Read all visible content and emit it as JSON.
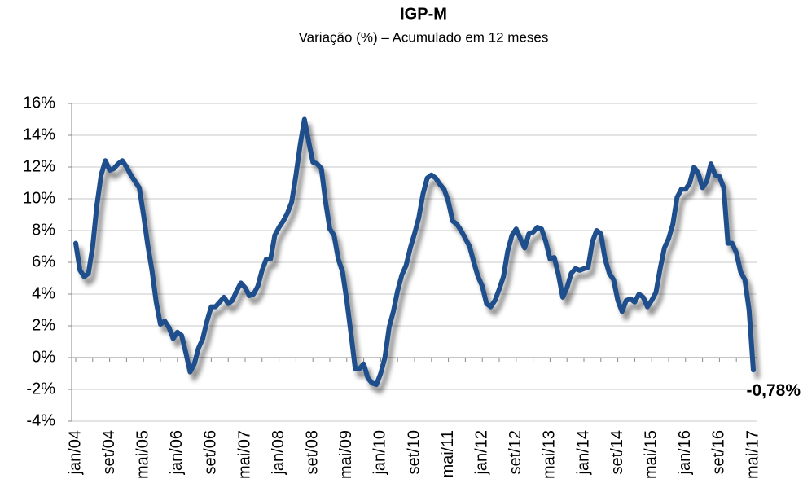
{
  "chart_data": {
    "type": "line",
    "title": "IGP-M",
    "subtitle": "Variação (%) – Acumulado em 12 meses",
    "categories": [
      "jan/04",
      null,
      null,
      null,
      null,
      null,
      null,
      null,
      "set/04",
      null,
      null,
      null,
      null,
      null,
      null,
      null,
      "mai/05",
      null,
      null,
      null,
      null,
      null,
      null,
      null,
      "jan/06",
      null,
      null,
      null,
      null,
      null,
      null,
      null,
      "set/06",
      null,
      null,
      null,
      null,
      null,
      null,
      null,
      "mai/07",
      null,
      null,
      null,
      null,
      null,
      null,
      null,
      "jan/08",
      null,
      null,
      null,
      null,
      null,
      null,
      null,
      "set/08",
      null,
      null,
      null,
      null,
      null,
      null,
      null,
      "mai/09",
      null,
      null,
      null,
      null,
      null,
      null,
      null,
      "jan/10",
      null,
      null,
      null,
      null,
      null,
      null,
      null,
      "set/10",
      null,
      null,
      null,
      null,
      null,
      null,
      null,
      "mai/11",
      null,
      null,
      null,
      null,
      null,
      null,
      null,
      "jan/12",
      null,
      null,
      null,
      null,
      null,
      null,
      null,
      "set/12",
      null,
      null,
      null,
      null,
      null,
      null,
      null,
      "mai/13",
      null,
      null,
      null,
      null,
      null,
      null,
      null,
      "jan/14",
      null,
      null,
      null,
      null,
      null,
      null,
      null,
      "set/14",
      null,
      null,
      null,
      null,
      null,
      null,
      null,
      "mai/15",
      null,
      null,
      null,
      null,
      null,
      null,
      null,
      "jan/16",
      null,
      null,
      null,
      null,
      null,
      null,
      null,
      "set/16",
      null,
      null,
      null,
      null,
      null,
      null,
      null,
      "mai/17"
    ],
    "series": [
      {
        "color": "#1f4e8c",
        "values": [
          7.2,
          5.5,
          5.1,
          5.3,
          7.0,
          9.6,
          11.5,
          12.4,
          11.8,
          11.9,
          12.2,
          12.4,
          12.0,
          11.5,
          11.1,
          10.7,
          9.0,
          7.1,
          5.5,
          3.5,
          2.1,
          2.3,
          1.9,
          1.2,
          1.6,
          1.4,
          0.3,
          -0.9,
          -0.4,
          0.6,
          1.2,
          2.3,
          3.2,
          3.2,
          3.5,
          3.8,
          3.4,
          3.6,
          4.2,
          4.7,
          4.4,
          3.9,
          4.0,
          4.5,
          5.5,
          6.2,
          6.2,
          7.7,
          8.2,
          8.6,
          9.1,
          9.8,
          11.5,
          13.4,
          15.0,
          13.6,
          12.3,
          12.2,
          11.9,
          9.8,
          8.1,
          7.7,
          6.2,
          5.4,
          3.6,
          1.5,
          -0.7,
          -0.7,
          -0.4,
          -1.3,
          -1.6,
          -1.7,
          -1.0,
          0.0,
          1.9,
          2.9,
          4.2,
          5.2,
          5.8,
          6.9,
          7.8,
          8.8,
          10.3,
          11.3,
          11.5,
          11.3,
          10.9,
          10.6,
          9.8,
          8.6,
          8.4,
          8.0,
          7.5,
          7.0,
          6.0,
          5.1,
          4.5,
          3.4,
          3.2,
          3.6,
          4.3,
          5.1,
          6.7,
          7.7,
          8.1,
          7.5,
          6.9,
          7.8,
          7.9,
          8.2,
          8.1,
          7.3,
          6.2,
          6.3,
          5.2,
          3.8,
          4.4,
          5.3,
          5.6,
          5.5,
          5.6,
          5.7,
          7.3,
          8.0,
          7.8,
          6.2,
          5.3,
          4.9,
          3.6,
          2.9,
          3.6,
          3.7,
          3.5,
          4.0,
          3.8,
          3.2,
          3.6,
          4.1,
          5.6,
          6.9,
          7.5,
          8.4,
          10.1,
          10.6,
          10.6,
          11.0,
          12.0,
          11.6,
          10.7,
          11.1,
          12.2,
          11.5,
          11.4,
          10.7,
          7.2,
          7.2,
          6.6,
          5.4,
          4.9,
          3.0,
          -0.78
        ],
        "value_labels": [
          null,
          null,
          null,
          null,
          null,
          null,
          null,
          null,
          null,
          null,
          null,
          null,
          null,
          null,
          null,
          null,
          null,
          null,
          null,
          null,
          null,
          null,
          null,
          null,
          null,
          null,
          null,
          null,
          null,
          null,
          null,
          null,
          null,
          null,
          null,
          null,
          null,
          null,
          null,
          null,
          null,
          null,
          null,
          null,
          null,
          null,
          null,
          null,
          null,
          null,
          null,
          null,
          null,
          null,
          null,
          null,
          null,
          null,
          null,
          null,
          null,
          null,
          null,
          null,
          null,
          null,
          null,
          null,
          null,
          null,
          null,
          null,
          null,
          null,
          null,
          null,
          null,
          null,
          null,
          null,
          null,
          null,
          null,
          null,
          null,
          null,
          null,
          null,
          null,
          null,
          null,
          null,
          null,
          null,
          null,
          null,
          null,
          null,
          null,
          null,
          null,
          null,
          null,
          null,
          null,
          null,
          null,
          null,
          null,
          null,
          null,
          null,
          null,
          null,
          null,
          null,
          null,
          null,
          null,
          null,
          null,
          null,
          null,
          null,
          null,
          null,
          null,
          null,
          null,
          null,
          null,
          null,
          null,
          null,
          null,
          null,
          null,
          null,
          null,
          null,
          null,
          null,
          null,
          null,
          null,
          null,
          null,
          null,
          null,
          null,
          null,
          null,
          null,
          null,
          null,
          null,
          null,
          null,
          null,
          null,
          "-0,78%"
        ]
      }
    ],
    "ylim": [
      -4,
      16
    ],
    "yticks": [
      {
        "value": -4,
        "label": "-4%"
      },
      {
        "value": -2,
        "label": "-2%"
      },
      {
        "value": 0,
        "label": "0%"
      },
      {
        "value": 2,
        "label": "2%"
      },
      {
        "value": 4,
        "label": "4%"
      },
      {
        "value": 6,
        "label": "6%"
      },
      {
        "value": 8,
        "label": "8%"
      },
      {
        "value": 10,
        "label": "10%"
      },
      {
        "value": 12,
        "label": "12%"
      },
      {
        "value": 14,
        "label": "14%"
      },
      {
        "value": 16,
        "label": "16%"
      }
    ],
    "grid": true
  }
}
